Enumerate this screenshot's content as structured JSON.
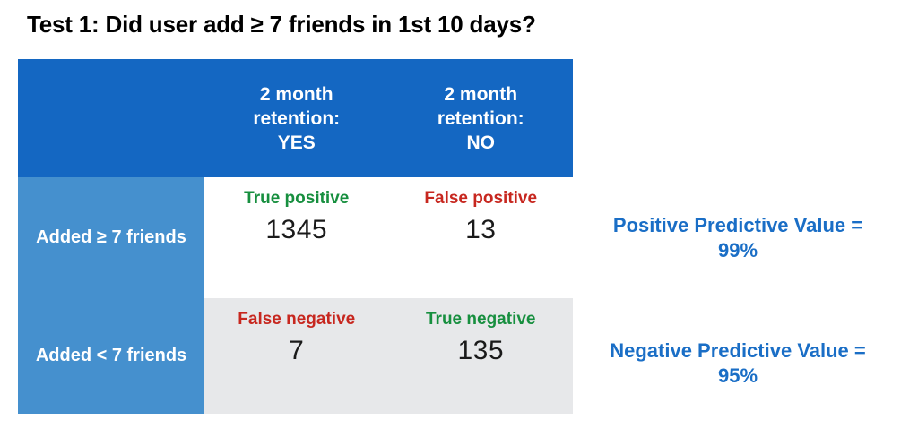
{
  "title": "Test 1: Did user add ≥ 7 friends in 1st 10 days?",
  "colors": {
    "header_blue": "#1467c2",
    "row_label_blue": "#4590ce",
    "row2_gray": "#e7e8ea",
    "true_green": "#178f3f",
    "false_red": "#c7271f",
    "annotation_blue": "#1a6ec6"
  },
  "table": {
    "col_headers": [
      {
        "label": "2 month\nretention:\nYES"
      },
      {
        "label": "2 month\nretention:\nNO"
      }
    ],
    "rows": [
      {
        "label": "Added ≥ 7 friends",
        "cells": [
          {
            "category": "True positive",
            "value": "1345",
            "kind": "true"
          },
          {
            "category": "False positive",
            "value": "13",
            "kind": "false"
          }
        ]
      },
      {
        "label": "Added < 7 friends",
        "cells": [
          {
            "category": "False negative",
            "value": "7",
            "kind": "false"
          },
          {
            "category": "True negative",
            "value": "135",
            "kind": "true"
          }
        ]
      }
    ]
  },
  "annotations": [
    {
      "text": "Positive Predictive Value =\n99%"
    },
    {
      "text": "Negative Predictive Value =\n95%"
    }
  ]
}
